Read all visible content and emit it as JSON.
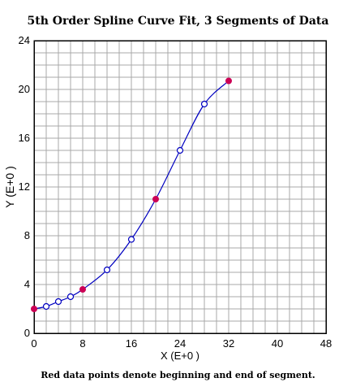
{
  "chart_data": {
    "type": "line",
    "title": "5th Order Spline Curve Fit, 3 Segments of Data",
    "xlabel": "X (E+0 )",
    "ylabel": "Y (E+0 )",
    "footnote": "Red data points denote beginning and end of segment.",
    "xlim": [
      0,
      48
    ],
    "ylim": [
      0,
      24
    ],
    "xticks": [
      0,
      8,
      16,
      24,
      32,
      40,
      48
    ],
    "yticks": [
      0,
      4,
      8,
      12,
      16,
      20,
      24
    ],
    "x_minor_step": 2,
    "y_minor_step": 1,
    "grid": true,
    "curve_color": "#0000c0",
    "segment_endpoint_color": "#cc0055",
    "interior_point_color": "#0000c0",
    "points": [
      {
        "x": 0,
        "y": 2.0,
        "segment_endpoint": true
      },
      {
        "x": 2,
        "y": 2.2,
        "segment_endpoint": false
      },
      {
        "x": 4,
        "y": 2.6,
        "segment_endpoint": false
      },
      {
        "x": 6,
        "y": 3.0,
        "segment_endpoint": false
      },
      {
        "x": 8,
        "y": 3.6,
        "segment_endpoint": true
      },
      {
        "x": 12,
        "y": 5.2,
        "segment_endpoint": false
      },
      {
        "x": 16,
        "y": 7.7,
        "segment_endpoint": false
      },
      {
        "x": 20,
        "y": 11.0,
        "segment_endpoint": true
      },
      {
        "x": 24,
        "y": 15.0,
        "segment_endpoint": false
      },
      {
        "x": 28,
        "y": 18.8,
        "segment_endpoint": false
      },
      {
        "x": 32,
        "y": 20.7,
        "segment_endpoint": true
      }
    ]
  }
}
